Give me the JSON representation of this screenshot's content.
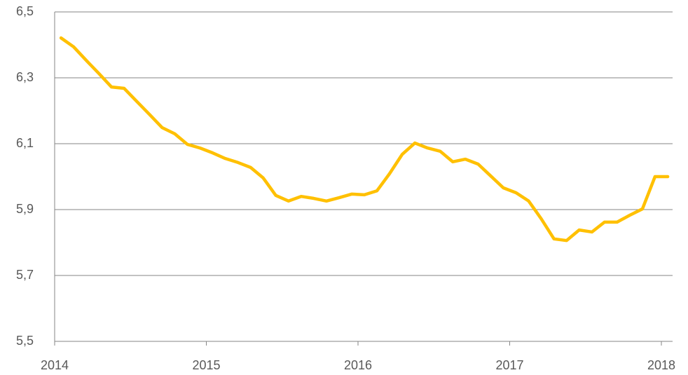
{
  "chart_data": {
    "type": "line",
    "x": [
      2014.042,
      2014.125,
      2014.208,
      2014.292,
      2014.375,
      2014.458,
      2014.542,
      2014.625,
      2014.708,
      2014.792,
      2014.875,
      2014.958,
      2015.042,
      2015.125,
      2015.208,
      2015.292,
      2015.375,
      2015.458,
      2015.542,
      2015.625,
      2015.708,
      2015.792,
      2015.875,
      2015.958,
      2016.042,
      2016.125,
      2016.208,
      2016.292,
      2016.375,
      2016.458,
      2016.542,
      2016.625,
      2016.708,
      2016.792,
      2016.875,
      2016.958,
      2017.042,
      2017.125,
      2017.208,
      2017.292,
      2017.375,
      2017.458,
      2017.542,
      2017.625,
      2017.708,
      2017.792,
      2017.875,
      2017.958,
      2018.042
    ],
    "series": [
      {
        "color": "#FFC000",
        "values": [
          6.421,
          6.394,
          6.353,
          6.313,
          6.272,
          6.268,
          6.228,
          6.189,
          6.149,
          6.13,
          6.098,
          6.087,
          6.072,
          6.055,
          6.043,
          6.028,
          5.996,
          5.943,
          5.926,
          5.94,
          5.934,
          5.926,
          5.936,
          5.947,
          5.945,
          5.957,
          6.009,
          6.068,
          6.102,
          6.087,
          6.077,
          6.045,
          6.053,
          6.038,
          6.002,
          5.966,
          5.951,
          5.926,
          5.872,
          5.811,
          5.806,
          5.838,
          5.832,
          5.862,
          5.862,
          5.883,
          5.902,
          6.0,
          6.0
        ]
      }
    ],
    "xlim": [
      2014,
      2018.07
    ],
    "xticks": [
      2014,
      2015,
      2016,
      2017,
      2018
    ],
    "ylim": [
      5.5,
      6.5
    ],
    "yticks": [
      {
        "value": 5.5,
        "label": "5,5"
      },
      {
        "value": 5.7,
        "label": "5,7"
      },
      {
        "value": 5.9,
        "label": "5,9"
      },
      {
        "value": 6.1,
        "label": "6,1"
      },
      {
        "value": 6.3,
        "label": "6,3"
      },
      {
        "value": 6.5,
        "label": "6,5"
      }
    ],
    "grid": true
  }
}
